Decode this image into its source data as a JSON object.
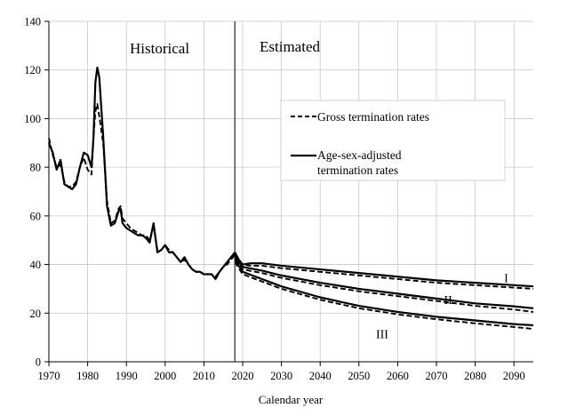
{
  "chart_data": {
    "type": "line",
    "title": "",
    "xlabel": "Calendar year",
    "ylabel": "",
    "xlim": [
      1970,
      2095
    ],
    "ylim": [
      0,
      140
    ],
    "x_ticks": [
      "1970",
      "1980",
      "1990",
      "2000",
      "2010",
      "2020",
      "2030",
      "2040",
      "2050",
      "2060",
      "2070",
      "2080",
      "2090"
    ],
    "y_ticks": [
      "0",
      "20",
      "40",
      "60",
      "80",
      "100",
      "120",
      "140"
    ],
    "grid": true,
    "divider_year": 2018,
    "region_labels": {
      "historical": "Historical",
      "estimated": "Estimated"
    },
    "legend": {
      "placement": "center-right",
      "entries": [
        {
          "lines": [
            "Gross termination rates"
          ],
          "style": "dashed"
        },
        {
          "lines": [
            "Age-sex-adjusted",
            "termination rates"
          ],
          "style": "solid"
        }
      ]
    },
    "scenario_labels": [
      {
        "text": "I",
        "x": 2088,
        "y": 34.5
      },
      {
        "text": "II",
        "x": 2073,
        "y": 25.5
      },
      {
        "text": "III",
        "x": 2056,
        "y": 11.5
      }
    ],
    "series": [
      {
        "style": "solid",
        "points": [
          [
            1970,
            90
          ],
          [
            1971,
            86
          ],
          [
            1972,
            79
          ],
          [
            1973,
            83
          ],
          [
            1974,
            73
          ],
          [
            1975,
            72
          ],
          [
            1976,
            71
          ],
          [
            1977,
            73
          ],
          [
            1978,
            80
          ],
          [
            1979,
            86
          ],
          [
            1980,
            85
          ],
          [
            1981,
            80
          ],
          [
            1981.5,
            92
          ],
          [
            1982,
            115
          ],
          [
            1982.5,
            121
          ],
          [
            1983,
            117
          ],
          [
            1984,
            93
          ],
          [
            1985,
            64
          ],
          [
            1986,
            56
          ],
          [
            1987,
            57
          ],
          [
            1988,
            62
          ],
          [
            1988.5,
            63
          ],
          [
            1989,
            57
          ],
          [
            1990,
            55
          ],
          [
            1991,
            54
          ],
          [
            1992,
            53
          ],
          [
            1993,
            52
          ],
          [
            1994,
            52
          ],
          [
            1995,
            51
          ],
          [
            1996,
            49
          ],
          [
            1997,
            57
          ],
          [
            1998,
            45
          ],
          [
            1999,
            46
          ],
          [
            2000,
            48
          ],
          [
            2001,
            45
          ],
          [
            2002,
            45
          ],
          [
            2003,
            43
          ],
          [
            2004,
            41
          ],
          [
            2005,
            43
          ],
          [
            2006,
            40
          ],
          [
            2007,
            38
          ],
          [
            2008,
            37
          ],
          [
            2009,
            37
          ],
          [
            2010,
            36
          ],
          [
            2011,
            36
          ],
          [
            2012,
            36
          ],
          [
            2013,
            34
          ],
          [
            2014,
            37
          ],
          [
            2015,
            39
          ],
          [
            2016,
            41
          ],
          [
            2017,
            43
          ],
          [
            2018,
            45
          ]
        ]
      },
      {
        "style": "dashed",
        "points": [
          [
            1970,
            92
          ],
          [
            1971,
            85
          ],
          [
            1972,
            80
          ],
          [
            1973,
            81
          ],
          [
            1974,
            74
          ],
          [
            1975,
            72
          ],
          [
            1976,
            72
          ],
          [
            1977,
            74
          ],
          [
            1978,
            80
          ],
          [
            1979,
            84
          ],
          [
            1980,
            79
          ],
          [
            1981,
            77
          ],
          [
            1981.5,
            92
          ],
          [
            1982,
            103
          ],
          [
            1982.5,
            106
          ],
          [
            1983,
            101
          ],
          [
            1984,
            90
          ],
          [
            1985,
            66
          ],
          [
            1986,
            57
          ],
          [
            1987,
            58
          ],
          [
            1988,
            63
          ],
          [
            1988.5,
            64
          ],
          [
            1989,
            59
          ],
          [
            1990,
            57
          ],
          [
            1991,
            55
          ],
          [
            1992,
            54
          ],
          [
            1993,
            53
          ],
          [
            1994,
            52
          ],
          [
            1995,
            52
          ],
          [
            1996,
            50
          ],
          [
            1997,
            56
          ],
          [
            1998,
            46
          ],
          [
            1999,
            46
          ],
          [
            2000,
            48
          ],
          [
            2001,
            46
          ],
          [
            2002,
            45
          ],
          [
            2003,
            43
          ],
          [
            2004,
            41
          ],
          [
            2005,
            42
          ],
          [
            2006,
            40
          ],
          [
            2007,
            38
          ],
          [
            2008,
            37
          ],
          [
            2009,
            37
          ],
          [
            2010,
            36
          ],
          [
            2011,
            36
          ],
          [
            2012,
            36
          ],
          [
            2013,
            35
          ],
          [
            2014,
            37
          ],
          [
            2015,
            39
          ],
          [
            2016,
            40
          ],
          [
            2017,
            42
          ],
          [
            2018,
            44
          ]
        ]
      },
      {
        "name": "I",
        "style": "solid",
        "points": [
          [
            2018,
            45
          ],
          [
            2019,
            42
          ],
          [
            2020,
            40
          ],
          [
            2022,
            40.5
          ],
          [
            2025,
            40.5
          ],
          [
            2030,
            39.5
          ],
          [
            2040,
            38
          ],
          [
            2050,
            36.5
          ],
          [
            2060,
            35
          ],
          [
            2070,
            33.5
          ],
          [
            2080,
            32.5
          ],
          [
            2090,
            31.5
          ],
          [
            2095,
            31
          ]
        ]
      },
      {
        "name": "I",
        "style": "dashed",
        "points": [
          [
            2018,
            44
          ],
          [
            2019,
            41
          ],
          [
            2020,
            40
          ],
          [
            2022,
            39.5
          ],
          [
            2025,
            39.5
          ],
          [
            2030,
            38.5
          ],
          [
            2040,
            37
          ],
          [
            2050,
            35.5
          ],
          [
            2060,
            34
          ],
          [
            2070,
            32.5
          ],
          [
            2080,
            31.5
          ],
          [
            2090,
            30.5
          ],
          [
            2095,
            30
          ]
        ]
      },
      {
        "name": "II",
        "style": "solid",
        "points": [
          [
            2018,
            43
          ],
          [
            2020,
            39
          ],
          [
            2025,
            37.5
          ],
          [
            2030,
            35.5
          ],
          [
            2040,
            32.5
          ],
          [
            2050,
            30
          ],
          [
            2060,
            28
          ],
          [
            2070,
            26
          ],
          [
            2080,
            24
          ],
          [
            2090,
            22.8
          ],
          [
            2095,
            22
          ]
        ]
      },
      {
        "name": "II",
        "style": "dashed",
        "points": [
          [
            2018,
            42
          ],
          [
            2020,
            38
          ],
          [
            2025,
            36.5
          ],
          [
            2030,
            34.5
          ],
          [
            2040,
            31.5
          ],
          [
            2050,
            29
          ],
          [
            2060,
            27
          ],
          [
            2070,
            25
          ],
          [
            2080,
            23
          ],
          [
            2090,
            21.5
          ],
          [
            2095,
            20.5
          ]
        ]
      },
      {
        "name": "III",
        "style": "solid",
        "points": [
          [
            2018,
            42
          ],
          [
            2020,
            37
          ],
          [
            2025,
            34
          ],
          [
            2030,
            31
          ],
          [
            2040,
            26.5
          ],
          [
            2050,
            23
          ],
          [
            2060,
            20.5
          ],
          [
            2070,
            18.5
          ],
          [
            2080,
            17
          ],
          [
            2090,
            15.5
          ],
          [
            2095,
            15
          ]
        ]
      },
      {
        "name": "III",
        "style": "dashed",
        "points": [
          [
            2018,
            41
          ],
          [
            2020,
            36
          ],
          [
            2025,
            33
          ],
          [
            2030,
            30
          ],
          [
            2040,
            25.5
          ],
          [
            2050,
            22
          ],
          [
            2060,
            19.5
          ],
          [
            2070,
            17.5
          ],
          [
            2080,
            15.8
          ],
          [
            2090,
            14.3
          ],
          [
            2095,
            13.5
          ]
        ]
      }
    ]
  }
}
